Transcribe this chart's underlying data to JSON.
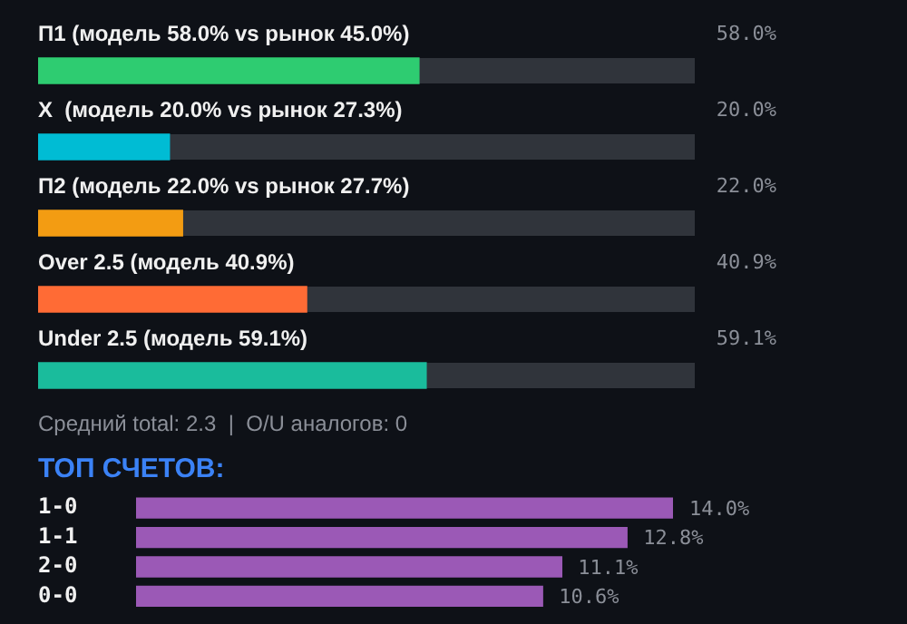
{
  "chart_data": [
    {
      "type": "bar",
      "orientation": "horizontal",
      "categories": [
        "П1 (модель 58.0% vs рынок 45.0%)",
        "X  (модель 20.0% vs рынок 27.3%)",
        "П2 (модель 22.0% vs рынок 27.7%)",
        "Over 2.5 (модель 40.9%)",
        "Under 2.5 (модель 59.1%)"
      ],
      "values": [
        58.0,
        20.0,
        22.0,
        40.9,
        59.1
      ],
      "colors": [
        "#2ecc71",
        "#00bcd4",
        "#f39c12",
        "#ff6b35",
        "#1abc9c"
      ],
      "value_labels": [
        "58.0%",
        "20.0%",
        "22.0%",
        "40.9%",
        "59.1%"
      ],
      "xlim": [
        0,
        100
      ],
      "tick_labels": "y",
      "legend": false,
      "annotations": [
        "Средний total: 2.3  |  O/U аналогов: 0"
      ]
    },
    {
      "type": "bar",
      "orientation": "horizontal",
      "title": "ТОП СЧЕТОВ:",
      "categories": [
        "1-0",
        "1-1",
        "2-0",
        "0-0"
      ],
      "values": [
        14.0,
        12.8,
        11.1,
        10.6
      ],
      "color": "#9b59b6",
      "value_labels": [
        "14.0%",
        "12.8%",
        "11.1%",
        "10.6%"
      ],
      "tick_labels": "y",
      "legend": false
    }
  ]
}
